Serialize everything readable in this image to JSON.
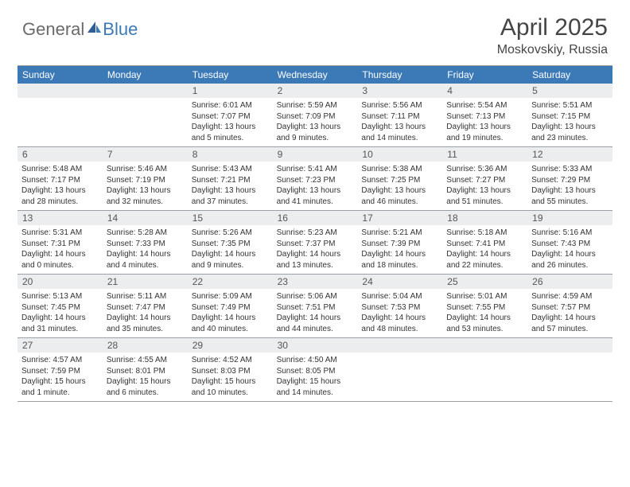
{
  "logo": {
    "part1": "General",
    "part2": "Blue"
  },
  "title": "April 2025",
  "location": "Moskovskiy, Russia",
  "day_names": [
    "Sunday",
    "Monday",
    "Tuesday",
    "Wednesday",
    "Thursday",
    "Friday",
    "Saturday"
  ],
  "colors": {
    "header_bg": "#3b79b7",
    "header_text": "#ffffff",
    "num_bg": "#ebedef",
    "border": "#9aa0a6",
    "title_color": "#454545"
  },
  "weeks": [
    [
      {
        "n": "",
        "sr": "",
        "ss": "",
        "dl": ""
      },
      {
        "n": "",
        "sr": "",
        "ss": "",
        "dl": ""
      },
      {
        "n": "1",
        "sr": "Sunrise: 6:01 AM",
        "ss": "Sunset: 7:07 PM",
        "dl": "Daylight: 13 hours and 5 minutes."
      },
      {
        "n": "2",
        "sr": "Sunrise: 5:59 AM",
        "ss": "Sunset: 7:09 PM",
        "dl": "Daylight: 13 hours and 9 minutes."
      },
      {
        "n": "3",
        "sr": "Sunrise: 5:56 AM",
        "ss": "Sunset: 7:11 PM",
        "dl": "Daylight: 13 hours and 14 minutes."
      },
      {
        "n": "4",
        "sr": "Sunrise: 5:54 AM",
        "ss": "Sunset: 7:13 PM",
        "dl": "Daylight: 13 hours and 19 minutes."
      },
      {
        "n": "5",
        "sr": "Sunrise: 5:51 AM",
        "ss": "Sunset: 7:15 PM",
        "dl": "Daylight: 13 hours and 23 minutes."
      }
    ],
    [
      {
        "n": "6",
        "sr": "Sunrise: 5:48 AM",
        "ss": "Sunset: 7:17 PM",
        "dl": "Daylight: 13 hours and 28 minutes."
      },
      {
        "n": "7",
        "sr": "Sunrise: 5:46 AM",
        "ss": "Sunset: 7:19 PM",
        "dl": "Daylight: 13 hours and 32 minutes."
      },
      {
        "n": "8",
        "sr": "Sunrise: 5:43 AM",
        "ss": "Sunset: 7:21 PM",
        "dl": "Daylight: 13 hours and 37 minutes."
      },
      {
        "n": "9",
        "sr": "Sunrise: 5:41 AM",
        "ss": "Sunset: 7:23 PM",
        "dl": "Daylight: 13 hours and 41 minutes."
      },
      {
        "n": "10",
        "sr": "Sunrise: 5:38 AM",
        "ss": "Sunset: 7:25 PM",
        "dl": "Daylight: 13 hours and 46 minutes."
      },
      {
        "n": "11",
        "sr": "Sunrise: 5:36 AM",
        "ss": "Sunset: 7:27 PM",
        "dl": "Daylight: 13 hours and 51 minutes."
      },
      {
        "n": "12",
        "sr": "Sunrise: 5:33 AM",
        "ss": "Sunset: 7:29 PM",
        "dl": "Daylight: 13 hours and 55 minutes."
      }
    ],
    [
      {
        "n": "13",
        "sr": "Sunrise: 5:31 AM",
        "ss": "Sunset: 7:31 PM",
        "dl": "Daylight: 14 hours and 0 minutes."
      },
      {
        "n": "14",
        "sr": "Sunrise: 5:28 AM",
        "ss": "Sunset: 7:33 PM",
        "dl": "Daylight: 14 hours and 4 minutes."
      },
      {
        "n": "15",
        "sr": "Sunrise: 5:26 AM",
        "ss": "Sunset: 7:35 PM",
        "dl": "Daylight: 14 hours and 9 minutes."
      },
      {
        "n": "16",
        "sr": "Sunrise: 5:23 AM",
        "ss": "Sunset: 7:37 PM",
        "dl": "Daylight: 14 hours and 13 minutes."
      },
      {
        "n": "17",
        "sr": "Sunrise: 5:21 AM",
        "ss": "Sunset: 7:39 PM",
        "dl": "Daylight: 14 hours and 18 minutes."
      },
      {
        "n": "18",
        "sr": "Sunrise: 5:18 AM",
        "ss": "Sunset: 7:41 PM",
        "dl": "Daylight: 14 hours and 22 minutes."
      },
      {
        "n": "19",
        "sr": "Sunrise: 5:16 AM",
        "ss": "Sunset: 7:43 PM",
        "dl": "Daylight: 14 hours and 26 minutes."
      }
    ],
    [
      {
        "n": "20",
        "sr": "Sunrise: 5:13 AM",
        "ss": "Sunset: 7:45 PM",
        "dl": "Daylight: 14 hours and 31 minutes."
      },
      {
        "n": "21",
        "sr": "Sunrise: 5:11 AM",
        "ss": "Sunset: 7:47 PM",
        "dl": "Daylight: 14 hours and 35 minutes."
      },
      {
        "n": "22",
        "sr": "Sunrise: 5:09 AM",
        "ss": "Sunset: 7:49 PM",
        "dl": "Daylight: 14 hours and 40 minutes."
      },
      {
        "n": "23",
        "sr": "Sunrise: 5:06 AM",
        "ss": "Sunset: 7:51 PM",
        "dl": "Daylight: 14 hours and 44 minutes."
      },
      {
        "n": "24",
        "sr": "Sunrise: 5:04 AM",
        "ss": "Sunset: 7:53 PM",
        "dl": "Daylight: 14 hours and 48 minutes."
      },
      {
        "n": "25",
        "sr": "Sunrise: 5:01 AM",
        "ss": "Sunset: 7:55 PM",
        "dl": "Daylight: 14 hours and 53 minutes."
      },
      {
        "n": "26",
        "sr": "Sunrise: 4:59 AM",
        "ss": "Sunset: 7:57 PM",
        "dl": "Daylight: 14 hours and 57 minutes."
      }
    ],
    [
      {
        "n": "27",
        "sr": "Sunrise: 4:57 AM",
        "ss": "Sunset: 7:59 PM",
        "dl": "Daylight: 15 hours and 1 minute."
      },
      {
        "n": "28",
        "sr": "Sunrise: 4:55 AM",
        "ss": "Sunset: 8:01 PM",
        "dl": "Daylight: 15 hours and 6 minutes."
      },
      {
        "n": "29",
        "sr": "Sunrise: 4:52 AM",
        "ss": "Sunset: 8:03 PM",
        "dl": "Daylight: 15 hours and 10 minutes."
      },
      {
        "n": "30",
        "sr": "Sunrise: 4:50 AM",
        "ss": "Sunset: 8:05 PM",
        "dl": "Daylight: 15 hours and 14 minutes."
      },
      {
        "n": "",
        "sr": "",
        "ss": "",
        "dl": ""
      },
      {
        "n": "",
        "sr": "",
        "ss": "",
        "dl": ""
      },
      {
        "n": "",
        "sr": "",
        "ss": "",
        "dl": ""
      }
    ]
  ]
}
